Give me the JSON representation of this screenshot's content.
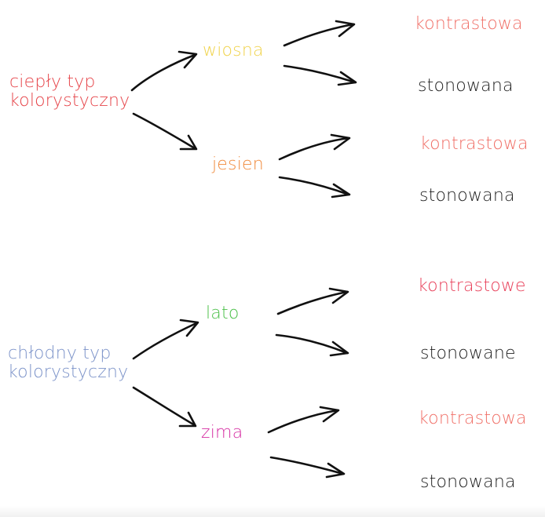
{
  "colors": {
    "warm": "#e6454a",
    "spring": "#f0d34b",
    "autumn": "#f0893a",
    "cool": "#7c93c9",
    "summer": "#4cc04a",
    "winter": "#d62fa3",
    "contrast": "#f07068",
    "contrast_summer": "#e8405a",
    "muted": "#222222",
    "arrow": "#111111"
  },
  "warm_type": {
    "line1": "ciepły typ",
    "line2": "kolorystyczny",
    "seasons": [
      {
        "name": "wiosna",
        "variants": [
          "kontrastowa",
          "stonowana"
        ]
      },
      {
        "name": "jesien",
        "variants": [
          "kontrastowa",
          "stonowana"
        ]
      }
    ]
  },
  "cool_type": {
    "line1": "chłodny typ",
    "line2": "kolorystyczny",
    "seasons": [
      {
        "name": "lato",
        "variants": [
          "kontrastowe",
          "stonowane"
        ]
      },
      {
        "name": "zima",
        "variants": [
          "kontrastowa",
          "stonowana"
        ]
      }
    ]
  }
}
